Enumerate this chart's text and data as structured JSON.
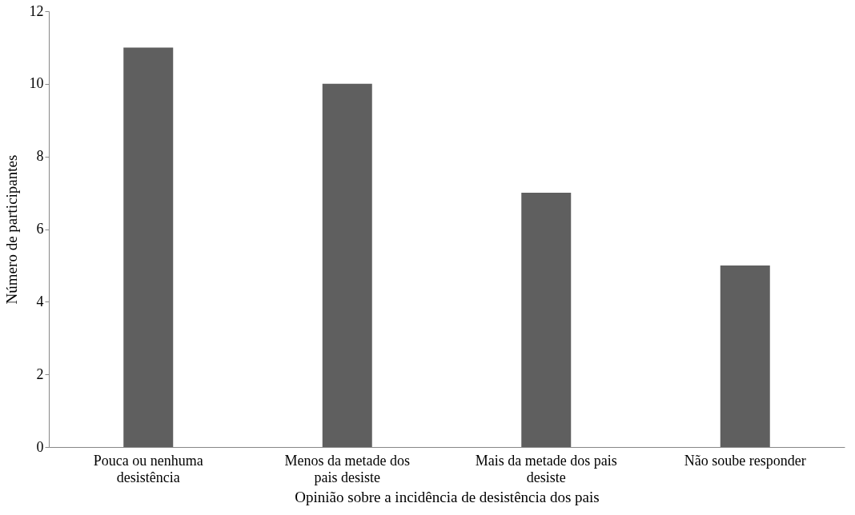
{
  "chart_data": {
    "type": "bar",
    "xlabel": "Opinião sobre a incidência de desistência dos pais",
    "ylabel": "Número de participantes",
    "categories": [
      "Pouca ou nenhuma desistência",
      "Menos da metade dos pais desiste",
      "Mais da metade dos pais desiste",
      "Não soube responder"
    ],
    "values": [
      11,
      10,
      7,
      5
    ],
    "color": "#5f5f5f",
    "ylim": [
      0,
      12
    ],
    "yticks": [
      0,
      2,
      4,
      6,
      8,
      10,
      12
    ],
    "grid": false
  }
}
